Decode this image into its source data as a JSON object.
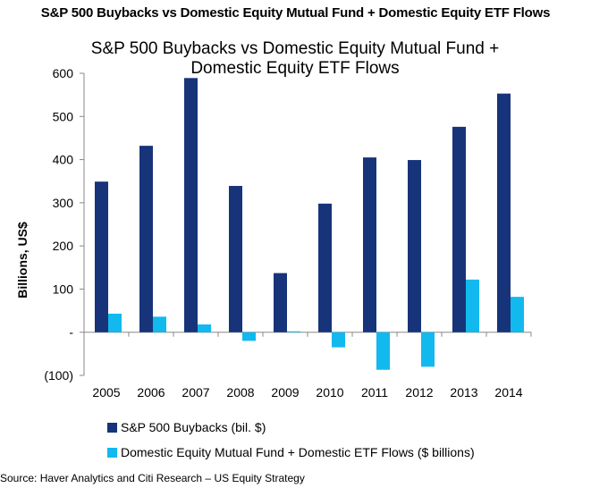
{
  "page_title": "S&P 500 Buybacks vs Domestic Equity Mutual Fund + Domestic Equity ETF Flows",
  "chart_data": {
    "type": "bar",
    "title_line1": "S&P 500 Buybacks vs Domestic Equity Mutual Fund +",
    "title_line2": "Domestic Equity ETF Flows",
    "xlabel": "",
    "ylabel": "Billions, US$",
    "ylim": [
      -100,
      600
    ],
    "yticks": [
      -100,
      0,
      100,
      200,
      300,
      400,
      500,
      600
    ],
    "ytick_labels": [
      "(100)",
      "-",
      "100",
      "200",
      "300",
      "400",
      "500",
      "600"
    ],
    "categories": [
      "2005",
      "2006",
      "2007",
      "2008",
      "2009",
      "2010",
      "2011",
      "2012",
      "2013",
      "2014"
    ],
    "series": [
      {
        "name": "S&P 500 Buybacks (bil. $)",
        "color": "#17347a",
        "values": [
          349,
          432,
          589,
          339,
          137,
          298,
          405,
          399,
          476,
          553
        ]
      },
      {
        "name": "Domestic Equity Mutual Fund + Domestic ETF Flows ($ billions)",
        "color": "#12b9ee",
        "values": [
          43,
          36,
          18,
          -20,
          2,
          -35,
          -87,
          -80,
          122,
          82
        ]
      }
    ],
    "grid": false,
    "legend_position": "bottom"
  },
  "source": "Source: Haver Analytics and Citi Research – US Equity Strategy"
}
